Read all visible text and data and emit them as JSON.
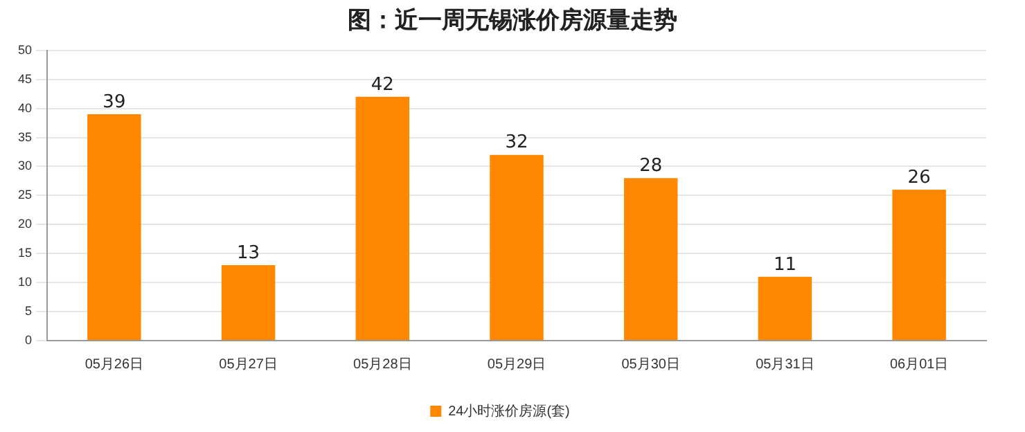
{
  "chart_data": {
    "type": "bar",
    "title": "图：近一周无锡涨价房源量走势",
    "categories": [
      "05月26日",
      "05月27日",
      "05月28日",
      "05月29日",
      "05月30日",
      "05月31日",
      "06月01日"
    ],
    "series": [
      {
        "name": "24小时涨价房源(套)",
        "color": "#ff8800",
        "values": [
          39,
          13,
          42,
          32,
          28,
          11,
          26
        ]
      }
    ],
    "ylim": [
      0,
      50
    ],
    "yticks": [
      0,
      5,
      10,
      15,
      20,
      25,
      30,
      35,
      40,
      45,
      50
    ],
    "grid": "y",
    "legend": "bottom",
    "data_labels": true
  }
}
